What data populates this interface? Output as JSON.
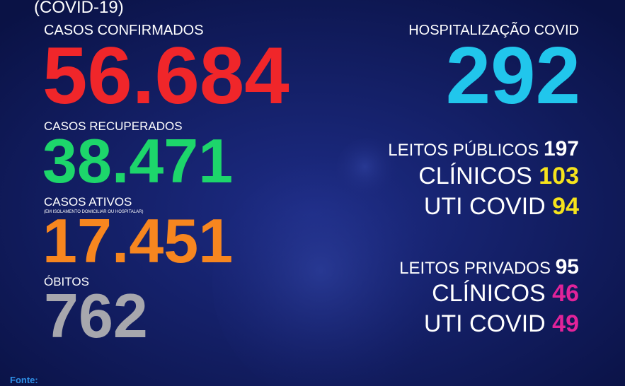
{
  "header": {
    "title": "(COVID-19)"
  },
  "left": {
    "confirmed": {
      "label": "CASOS CONFIRMADOS",
      "value": "56.684"
    },
    "recovered": {
      "label": "CASOS RECUPERADOS",
      "value": "38.471"
    },
    "active": {
      "label": "CASOS ATIVOS",
      "note": "(EM ISOLAMENTO DOMICILIAR OU HOSPITALAR)",
      "value": "17.451"
    },
    "deaths": {
      "label": "ÓBITOS",
      "value": "762"
    }
  },
  "right": {
    "hospitalization": {
      "label": "HOSPITALIZAÇÃO COVID",
      "value": "292"
    },
    "public": {
      "label": "LEITOS PÚBLICOS",
      "value": "197",
      "clinical_label": "CLÍNICOS",
      "clinical": "103",
      "icu_label": "UTI COVID",
      "icu": "94"
    },
    "private": {
      "label": "LEITOS PRIVADOS",
      "value": "95",
      "clinical_label": "CLÍNICOS",
      "clinical": "46",
      "icu_label": "UTI COVID",
      "icu": "49"
    }
  },
  "footer": {
    "source": "Fonte:"
  }
}
